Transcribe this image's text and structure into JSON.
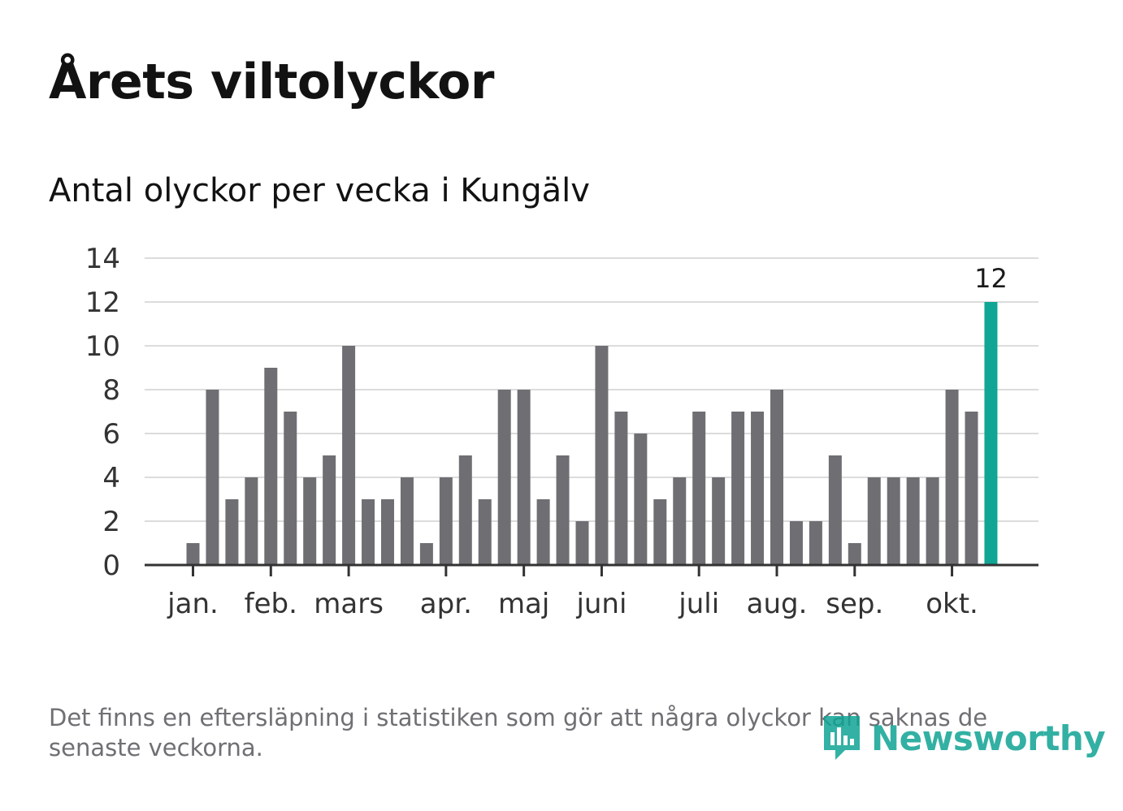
{
  "title": "Årets viltolyckor",
  "subtitle": "Antal olyckor per vecka i Kungälv",
  "footnote": "Det finns en eftersläpning i statistiken som gör att några olyckor kan saknas de senaste veckorna.",
  "brand": "Newsworthy",
  "colors": {
    "bar": "#6f6e73",
    "highlight": "#10a594",
    "grid": "#dcdcdc",
    "axis": "#333333",
    "text": "#333333"
  },
  "chart_data": {
    "type": "bar",
    "ylim": [
      0,
      14
    ],
    "yticks": [
      0,
      2,
      4,
      6,
      8,
      10,
      12,
      14
    ],
    "grid": true,
    "values": [
      1,
      8,
      3,
      4,
      9,
      7,
      4,
      5,
      10,
      3,
      3,
      4,
      1,
      4,
      5,
      3,
      8,
      8,
      3,
      5,
      2,
      10,
      7,
      6,
      3,
      4,
      7,
      4,
      7,
      7,
      8,
      2,
      2,
      5,
      1,
      4,
      4,
      4,
      4,
      8,
      7,
      12
    ],
    "highlight_index": 41,
    "highlight_label": "12",
    "months": [
      {
        "label": "jan.",
        "week": 0
      },
      {
        "label": "feb.",
        "week": 4
      },
      {
        "label": "mars",
        "week": 8
      },
      {
        "label": "apr.",
        "week": 13
      },
      {
        "label": "maj",
        "week": 17
      },
      {
        "label": "juni",
        "week": 21
      },
      {
        "label": "juli",
        "week": 26
      },
      {
        "label": "aug.",
        "week": 30
      },
      {
        "label": "sep.",
        "week": 34
      },
      {
        "label": "okt.",
        "week": 39
      }
    ]
  }
}
